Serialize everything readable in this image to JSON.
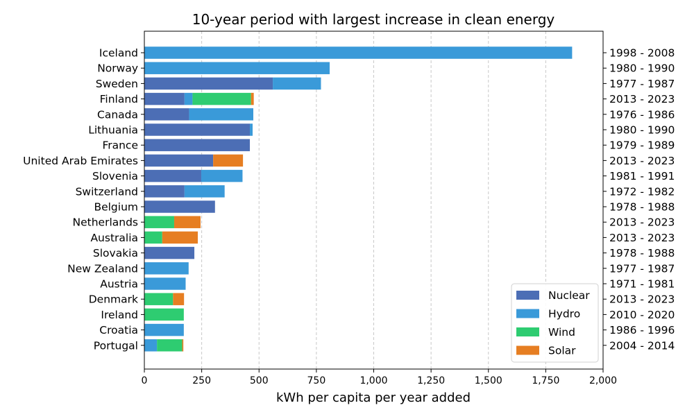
{
  "chart_data": {
    "type": "bar",
    "orientation": "horizontal",
    "stacked": true,
    "title": "10-year period with largest increase in clean energy",
    "xlabel": "kWh per capita per year added",
    "ylabel": "",
    "xlim": [
      0,
      2000
    ],
    "xticks": [
      0,
      250,
      500,
      750,
      1000,
      1250,
      1500,
      1750,
      2000
    ],
    "xtick_labels": [
      "0",
      "250",
      "500",
      "750",
      "1,000",
      "1,250",
      "1,500",
      "1,750",
      "2,000"
    ],
    "grid": "vertical dashed",
    "legend_position": "bottom-right",
    "categories": [
      "Iceland",
      "Norway",
      "Sweden",
      "Finland",
      "Canada",
      "Lithuania",
      "France",
      "United Arab Emirates",
      "Slovenia",
      "Switzerland",
      "Belgium",
      "Netherlands",
      "Australia",
      "Slovakia",
      "New Zealand",
      "Austria",
      "Denmark",
      "Ireland",
      "Croatia",
      "Portugal"
    ],
    "periods": [
      "1998 - 2008",
      "1980 - 1990",
      "1977 - 1987",
      "2013 - 2023",
      "1976 - 1986",
      "1980 - 1990",
      "1979 - 1989",
      "2013 - 2023",
      "1981 - 1991",
      "1972 - 1982",
      "1978 - 1988",
      "2013 - 2023",
      "2013 - 2023",
      "1978 - 1988",
      "1977 - 1987",
      "1971 - 1981",
      "2013 - 2023",
      "2010 - 2020",
      "1986 - 1996",
      "2004 - 2014"
    ],
    "series": [
      {
        "name": "Nuclear",
        "color": "#4c6eb5",
        "values": [
          0,
          0,
          560,
          175,
          195,
          460,
          460,
          300,
          248,
          175,
          308,
          0,
          0,
          218,
          0,
          0,
          0,
          0,
          0,
          0
        ]
      },
      {
        "name": "Hydro",
        "color": "#3a9ad9",
        "values": [
          1865,
          808,
          210,
          35,
          280,
          12,
          0,
          0,
          180,
          175,
          0,
          0,
          0,
          0,
          193,
          180,
          0,
          0,
          172,
          55
        ]
      },
      {
        "name": "Wind",
        "color": "#2ecc71",
        "values": [
          0,
          0,
          0,
          255,
          0,
          0,
          0,
          0,
          0,
          0,
          0,
          130,
          78,
          0,
          0,
          0,
          125,
          172,
          0,
          110
        ]
      },
      {
        "name": "Solar",
        "color": "#e67e22",
        "values": [
          0,
          0,
          0,
          12,
          0,
          0,
          0,
          130,
          0,
          0,
          0,
          115,
          155,
          0,
          0,
          0,
          48,
          0,
          0,
          5
        ]
      }
    ]
  }
}
